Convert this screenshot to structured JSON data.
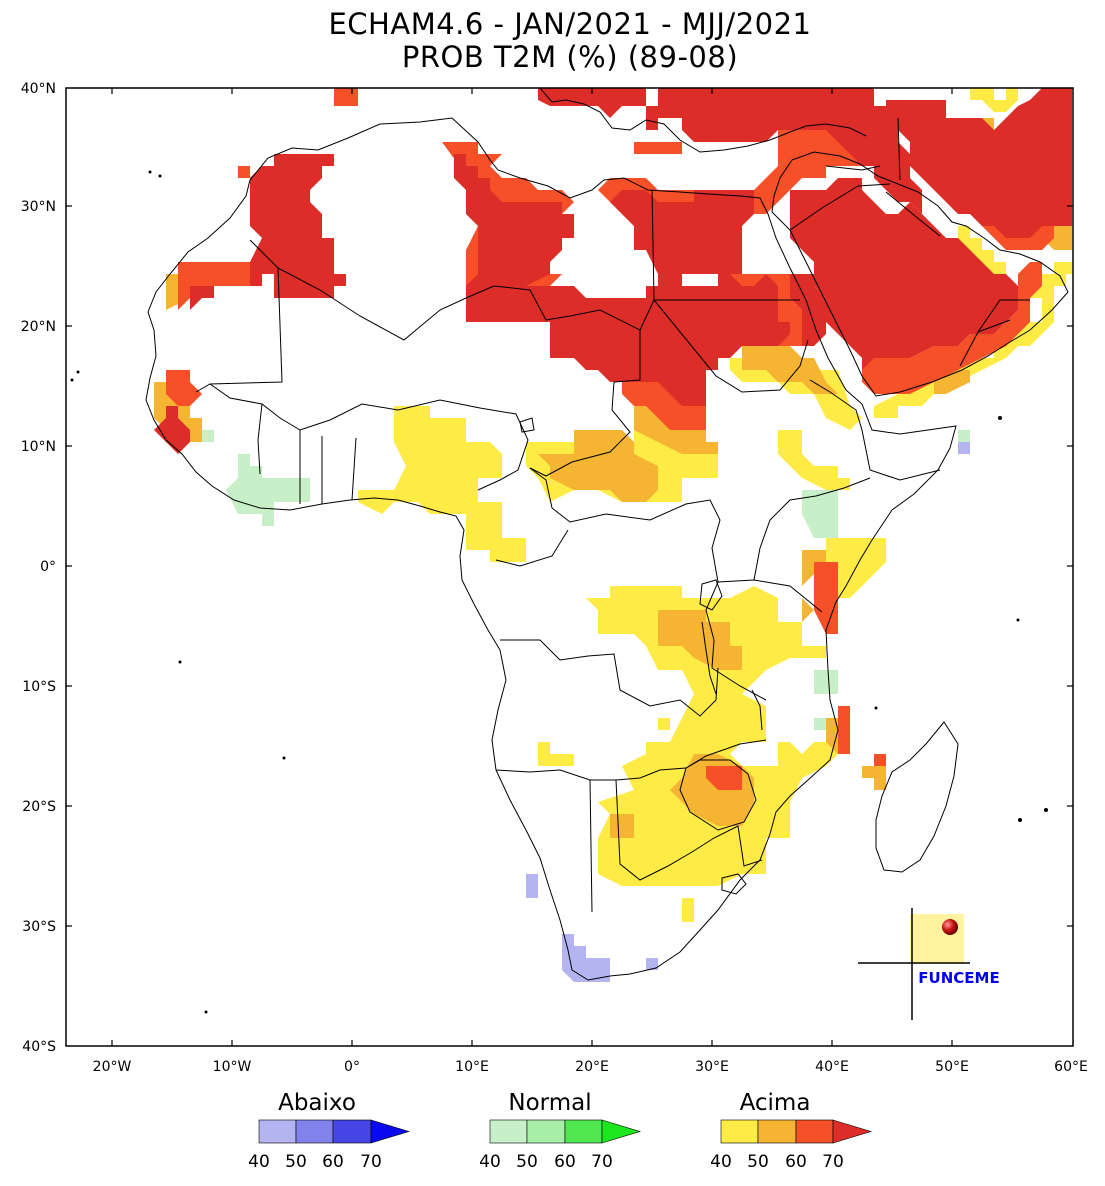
{
  "title": {
    "line1": "ECHAM4.6 - JAN/2021 - MJJ/2021",
    "line2": "PROB T2M (%) (89-08)"
  },
  "axes": {
    "lat_labels": [
      "40°N",
      "30°N",
      "20°N",
      "10°N",
      "0°",
      "10°S",
      "20°S",
      "30°S",
      "40°S"
    ],
    "lon_labels": [
      "20°W",
      "10°W",
      "0°",
      "10°E",
      "20°E",
      "30°E",
      "40°E",
      "50°E",
      "60°E"
    ]
  },
  "legend": [
    {
      "title": "Abaixo",
      "colors": [
        "#b4b4f0",
        "#8282eb",
        "#4646e6",
        "#0a0af0"
      ],
      "ticks": [
        "40",
        "50",
        "60",
        "70"
      ]
    },
    {
      "title": "Normal",
      "colors": [
        "#c8f0c8",
        "#a8eea8",
        "#50e650",
        "#1ee61e"
      ],
      "ticks": [
        "40",
        "50",
        "60",
        "70"
      ]
    },
    {
      "title": "Acima",
      "colors": [
        "#ffeb46",
        "#f5b432",
        "#f55028",
        "#dc2d28"
      ],
      "ticks": [
        "40",
        "50",
        "60",
        "70"
      ]
    }
  ],
  "logo": {
    "text": "FUNCEME"
  }
}
